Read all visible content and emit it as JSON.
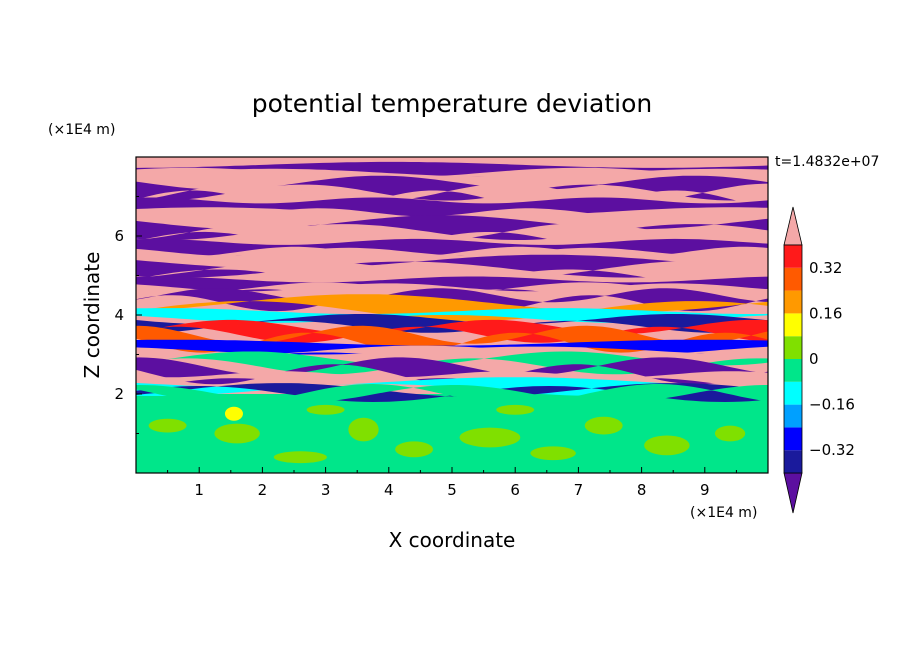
{
  "chart_data": {
    "type": "heatmap",
    "title": "potential temperature deviation",
    "xlabel": "X coordinate",
    "ylabel": "Z coordinate",
    "x_unit": "(×1E4 m)",
    "y_unit": "(×1E4 m)",
    "time_label": "t=1.4832e+07",
    "xlim": [
      0,
      10
    ],
    "ylim": [
      0,
      8
    ],
    "x_ticks": [
      "1",
      "2",
      "3",
      "4",
      "5",
      "6",
      "7",
      "8",
      "9"
    ],
    "y_ticks": [
      "2",
      "4",
      "6"
    ],
    "colorbar": {
      "levels": [
        -0.4,
        -0.32,
        -0.24,
        -0.16,
        -0.08,
        0,
        0.08,
        0.16,
        0.24,
        0.32,
        0.4
      ],
      "labels": [
        "0.32",
        "0.16",
        "0",
        "−0.16",
        "−0.32"
      ],
      "label_values": [
        0.32,
        0.16,
        0,
        -0.16,
        -0.32
      ],
      "colors": [
        "#5c0fa0",
        "#1a1a9c",
        "#0000ff",
        "#00a0ff",
        "#00ffff",
        "#00e68a",
        "#80e000",
        "#ffff00",
        "#ff9900",
        "#ff5a00",
        "#ff1a1a",
        "#f4a8a8"
      ]
    },
    "bands": [
      {
        "z": 7.8,
        "class": 0
      },
      {
        "z": 7.6,
        "class": 11
      },
      {
        "z": 7.35,
        "class": 0
      },
      {
        "z": 7.1,
        "class": 11
      },
      {
        "z": 6.9,
        "class": 0
      },
      {
        "z": 6.6,
        "class": 11
      },
      {
        "z": 6.35,
        "class": 0
      },
      {
        "z": 6.1,
        "class": 11
      },
      {
        "z": 5.85,
        "class": 0
      },
      {
        "z": 5.6,
        "class": 11
      },
      {
        "z": 5.35,
        "class": 0
      },
      {
        "z": 5.15,
        "class": 11
      },
      {
        "z": 4.9,
        "class": 0
      },
      {
        "z": 4.7,
        "class": 11
      },
      {
        "z": 4.5,
        "class": 0
      },
      {
        "z": 4.3,
        "class": 8
      },
      {
        "z": 4.1,
        "class": 4
      },
      {
        "z": 3.9,
        "class": 1
      },
      {
        "z": 3.7,
        "class": 10
      },
      {
        "z": 3.5,
        "class": 9
      },
      {
        "z": 3.3,
        "class": 2
      },
      {
        "z": 3.1,
        "class": 11
      },
      {
        "z": 2.9,
        "class": 5
      },
      {
        "z": 2.7,
        "class": 0
      },
      {
        "z": 2.5,
        "class": 11
      },
      {
        "z": 2.3,
        "class": 4
      },
      {
        "z": 2.1,
        "class": 1
      },
      {
        "z": 2.0,
        "class": 5
      }
    ]
  }
}
